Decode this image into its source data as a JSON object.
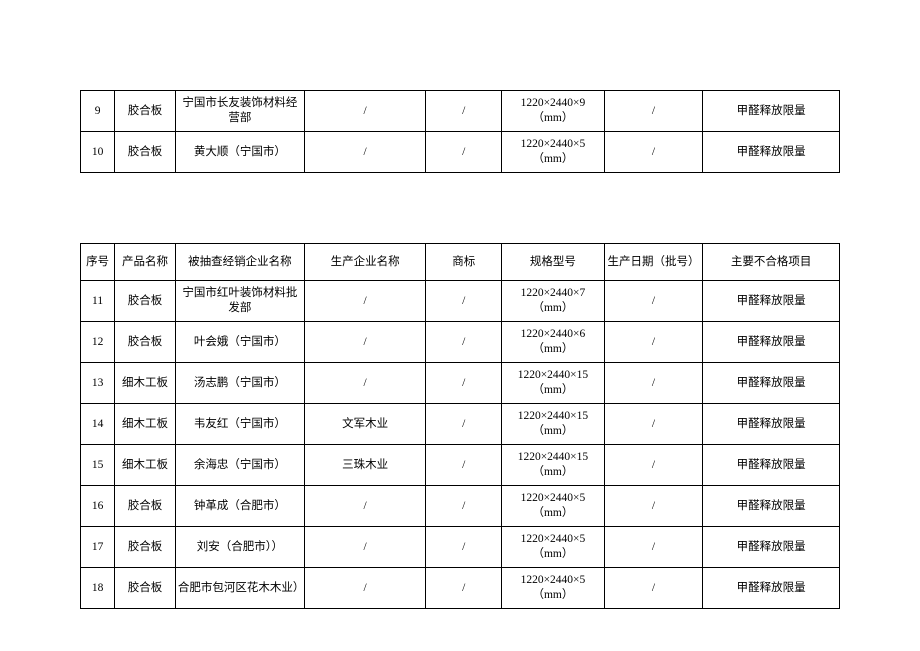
{
  "headers": {
    "seq": "序号",
    "product": "产品名称",
    "vendor": "被抽查经销企业名称",
    "producer": "生产企业名称",
    "brand": "商标",
    "spec": "规格型号",
    "date": "生产日期（批号）",
    "fail": "主要不合格项目"
  },
  "table1": {
    "rows": [
      {
        "seq": "9",
        "product": "胶合板",
        "vendor": "宁国市长友装饰材料经营部",
        "producer": "/",
        "brand": "/",
        "spec": "1220×2440×9（mm）",
        "date": "/",
        "fail": "甲醛释放限量"
      },
      {
        "seq": "10",
        "product": "胶合板",
        "vendor": "黄大顺（宁国市）",
        "producer": "/",
        "brand": "/",
        "spec": "1220×2440×5（mm）",
        "date": "/",
        "fail": "甲醛释放限量"
      }
    ]
  },
  "table2": {
    "rows": [
      {
        "seq": "11",
        "product": "胶合板",
        "vendor": "宁国市红叶装饰材料批发部",
        "producer": "/",
        "brand": "/",
        "spec": "1220×2440×7（mm）",
        "date": "/",
        "fail": "甲醛释放限量"
      },
      {
        "seq": "12",
        "product": "胶合板",
        "vendor": "叶会娥（宁国市）",
        "producer": "/",
        "brand": "/",
        "spec": "1220×2440×6（mm）",
        "date": "/",
        "fail": "甲醛释放限量"
      },
      {
        "seq": "13",
        "product": "细木工板",
        "vendor": "汤志鹏（宁国市）",
        "producer": "/",
        "brand": "/",
        "spec": "1220×2440×15（mm）",
        "date": "/",
        "fail": "甲醛释放限量"
      },
      {
        "seq": "14",
        "product": "细木工板",
        "vendor": "韦友红（宁国市）",
        "producer": "文军木业",
        "brand": "/",
        "spec": "1220×2440×15（mm）",
        "date": "/",
        "fail": "甲醛释放限量"
      },
      {
        "seq": "15",
        "product": "细木工板",
        "vendor": "余海忠（宁国市）",
        "producer": "三珠木业",
        "brand": "/",
        "spec": "1220×2440×15（mm）",
        "date": "/",
        "fail": "甲醛释放限量"
      },
      {
        "seq": "16",
        "product": "胶合板",
        "vendor": "钟革成（合肥市）",
        "producer": "/",
        "brand": "/",
        "spec": "1220×2440×5（mm）",
        "date": "/",
        "fail": "甲醛释放限量"
      },
      {
        "seq": "17",
        "product": "胶合板",
        "vendor": "刘安（合肥市））",
        "producer": "/",
        "brand": "/",
        "spec": "1220×2440×5（mm）",
        "date": "/",
        "fail": "甲醛释放限量"
      },
      {
        "seq": "18",
        "product": "胶合板",
        "vendor": "合肥市包河区花木木业）",
        "producer": "/",
        "brand": "/",
        "spec": "1220×2440×5（mm）",
        "date": "/",
        "fail": "甲醛释放限量"
      }
    ]
  }
}
